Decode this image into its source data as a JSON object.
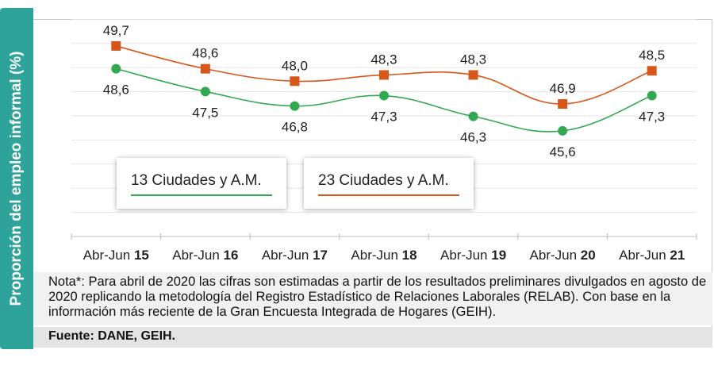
{
  "chart_data": {
    "type": "line",
    "ylabel": "Proporción del empleo informal (%)",
    "categories": [
      {
        "prefix": "Abr-Jun ",
        "year": "15"
      },
      {
        "prefix": "Abr-Jun ",
        "year": "16"
      },
      {
        "prefix": "Abr-Jun ",
        "year": "17"
      },
      {
        "prefix": "Abr-Jun ",
        "year": "18"
      },
      {
        "prefix": "Abr-Jun ",
        "year": "19"
      },
      {
        "prefix": "Abr-Jun ",
        "year": "20"
      },
      {
        "prefix": "Abr-Jun ",
        "year": "21"
      }
    ],
    "ylim": [
      40.5,
      51.0
    ],
    "grid": true,
    "series": [
      {
        "name": "13 Ciudades y A.M.",
        "color": "#33a853",
        "marker": "circle",
        "values": [
          48.6,
          47.5,
          46.8,
          47.3,
          46.3,
          45.6,
          47.3
        ],
        "labels": [
          "48,6",
          "47,5",
          "46,8",
          "47,3",
          "46,3",
          "45,6",
          "47,3"
        ]
      },
      {
        "name": "23 Ciudades y A.M.",
        "color": "#d7561a",
        "marker": "square",
        "values": [
          49.7,
          48.6,
          48.0,
          48.3,
          48.3,
          46.9,
          48.5
        ],
        "labels": [
          "49,7",
          "48,6",
          "48,0",
          "48,3",
          "48,3",
          "46,9",
          "48,5"
        ]
      }
    ]
  },
  "legend": {
    "item1": "13 Ciudades y A.M.",
    "item2": "23 Ciudades y A.M."
  },
  "note": "Nota*: Para abril de 2020 las cifras son estimadas a partir de los resultados preliminares divulgados en agosto de 2020 replicando la metodología del Registro Estadístico de Relaciones Laborales (RELAB). Con base en la información más reciente de la Gran Encuesta Integrada de Hogares (GEIH).",
  "source": "Fuente: DANE, GEIH."
}
